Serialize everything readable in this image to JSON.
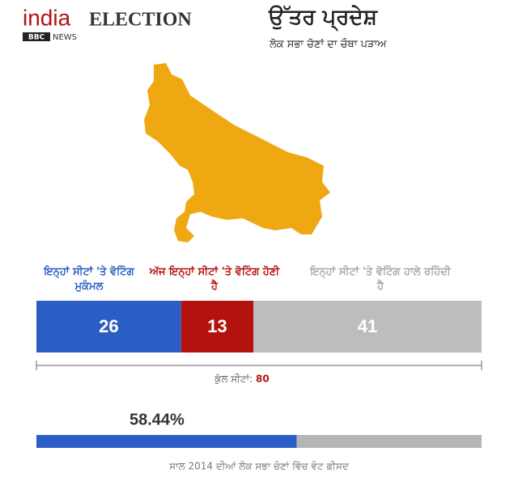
{
  "header": {
    "logo_india": "india",
    "logo_election": "ELECTION",
    "logo_bbc": "BBC",
    "logo_news": "NEWS",
    "title": "ਉੱਤਰ ਪ੍ਰਦੇਸ਼",
    "subtitle": "ਲੋਕ ਸਭਾ ਚੋਣਾਂ ਦਾ ਚੌਥਾ ਪੜਾਅ"
  },
  "seats": {
    "segments": [
      {
        "name": "ਇਨ੍ਹਾਂ ਸੀਟਾਂ 'ਤੇ ਵੋਟਿੰਗ ਮੁਕੰਮਲ",
        "color": "#2b5ec4",
        "value": 26
      },
      {
        "name": "ਅੱਜ ਇਨ੍ਹਾਂ ਸੀਟਾਂ 'ਤੇ ਵੋਟਿੰਗ ਹੋਣੀ ਹੈ",
        "color": "#b3120f",
        "value": 13
      },
      {
        "name": "ਇਨ੍ਹਾਂ ਸੀਟਾਂ 'ਤੇ ਵੋਟਿੰਗ ਹਾਲੇ ਰਹਿੰਦੀ ਹੈ",
        "color": "#bdbdbd",
        "value": 41
      }
    ],
    "total_label": "ਕੁੱਲ ਸੀਟਾਂ:",
    "total": 80
  },
  "vote_share": {
    "value": 58.44,
    "label": "58.44%",
    "xlim": [
      0,
      100
    ],
    "color": "#2b5ec4",
    "rest_color": "#b5b5b5",
    "caption": "ਸਾਲ 2014 ਦੀਆਂ ਲੋਕ ਸਭਾ ਚੋਣਾਂ ਵਿੱਚ ਵੋਟ ਫ਼ੀਸਦ"
  }
}
